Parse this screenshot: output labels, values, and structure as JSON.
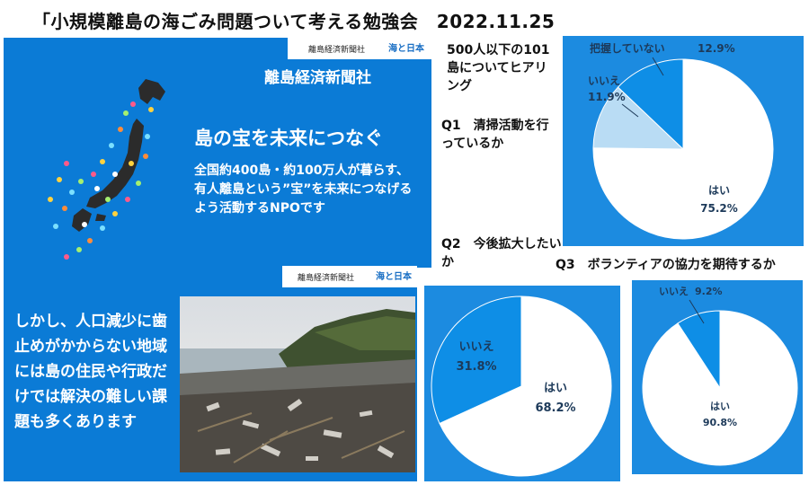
{
  "title": "「小規模離島の海ごみ問題ついて考える勉強会　2022.11.25",
  "slide1": {
    "logo_left": "離島経済新聞社",
    "logo_right": "海と日本",
    "org_name": "離島経済新聞社",
    "headline": "島の宝を未来につなぐ",
    "body": "全国約400島・約100万人が暮らす、有人離島という”宝”を未来につなげるよう活動するNPOです"
  },
  "slide2": {
    "logo_left": "離島経済新聞社",
    "logo_right": "海と日本",
    "body": "しかし、人口減少に歯止めがかからない地域には島の住民や行政だけでは解決の難しい課題も多くあります"
  },
  "side_text": {
    "intro": "500人以下の101島についてヒアリング",
    "q1": "Q1　清掃活動を行っているか",
    "q2": "Q2　今後拡大したいか",
    "q3": "Q3　ボランティアの協力を期待するか"
  },
  "colors": {
    "slide_blue": "#0b7bd6",
    "panel_blue": "#1c8be0",
    "slice_yes": "#ffffff",
    "slice_blue": "#0e8ee6",
    "slice_light": "#b9dcf4"
  },
  "chart_data": [
    {
      "type": "pie",
      "slices": [
        {
          "label": "はい",
          "value": 75.2,
          "display": "75.2%"
        },
        {
          "label": "いいえ",
          "value": 11.9,
          "display": "11.9%"
        },
        {
          "label": "把握していない",
          "value": 12.9,
          "display": "12.9%"
        }
      ]
    },
    {
      "type": "pie",
      "slices": [
        {
          "label": "はい",
          "value": 68.2,
          "display": "68.2%"
        },
        {
          "label": "いいえ",
          "value": 31.8,
          "display": "31.8%"
        }
      ]
    },
    {
      "type": "pie",
      "slices": [
        {
          "label": "はい",
          "value": 90.8,
          "display": "90.8%"
        },
        {
          "label": "いいえ",
          "value": 9.2,
          "display": "9.2%"
        }
      ]
    }
  ]
}
